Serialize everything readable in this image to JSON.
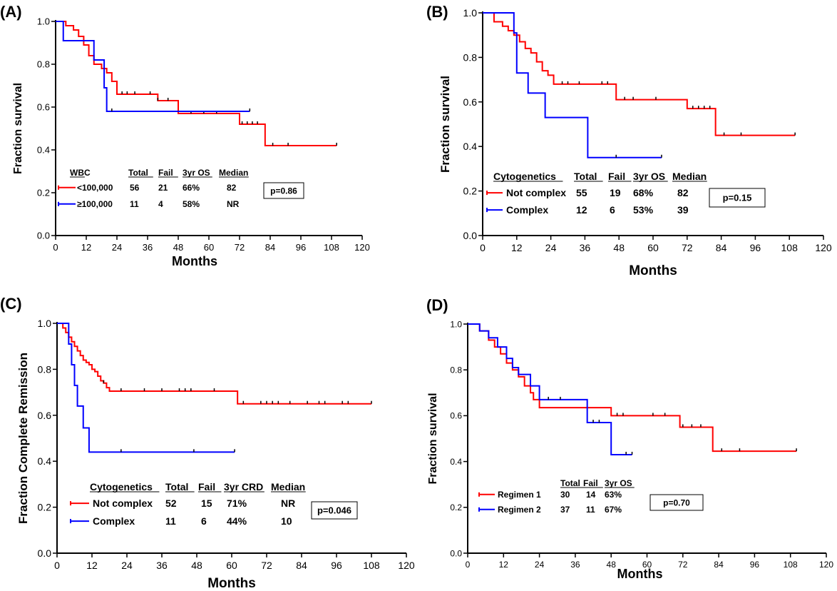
{
  "chart_data": [
    {
      "type": "line",
      "panel_label": "(A)",
      "ylabel": "Fraction survival",
      "xlabel": "Months",
      "xlim": [
        0,
        120
      ],
      "ylim": [
        0,
        1.0
      ],
      "xticks": [
        "0",
        "12",
        "24",
        "36",
        "48",
        "60",
        "72",
        "84",
        "96",
        "108",
        "120"
      ],
      "yticks": [
        "0.0",
        "0.2",
        "0.4",
        "0.6",
        "0.8",
        "1.0"
      ],
      "grid": false,
      "series": [
        {
          "name": "<100,000",
          "color": "#ff0000",
          "x": [
            0,
            4,
            7,
            9,
            11,
            13,
            15,
            18,
            20,
            22,
            24,
            28,
            40,
            48,
            72,
            82,
            110
          ],
          "y": [
            1.0,
            0.98,
            0.96,
            0.93,
            0.89,
            0.84,
            0.8,
            0.78,
            0.76,
            0.72,
            0.66,
            0.66,
            0.63,
            0.57,
            0.52,
            0.42,
            0.42
          ],
          "censor_x": [
            26,
            28,
            31,
            37,
            40,
            44,
            53,
            58,
            63,
            73,
            75,
            77,
            79,
            85,
            91,
            110
          ]
        },
        {
          "name": "≥100,000",
          "color": "#0000ff",
          "x": [
            0,
            3,
            15,
            19,
            20,
            76
          ],
          "y": [
            1.0,
            0.91,
            0.82,
            0.69,
            0.58,
            0.58
          ],
          "censor_x": [
            22,
            76
          ]
        }
      ],
      "legend": {
        "position": "bottom-left",
        "headers": [
          "WBC",
          "Total",
          "Fail",
          "3yr OS",
          "Median"
        ],
        "rows": [
          [
            "<100,000",
            "56",
            "21",
            "66%",
            "82"
          ],
          [
            "≥100,000",
            "11",
            "4",
            "58%",
            "NR"
          ]
        ]
      },
      "pvalue": "p=0.86"
    },
    {
      "type": "line",
      "panel_label": "(B)",
      "ylabel": "Fraction survival",
      "xlabel": "Months",
      "xlim": [
        0,
        120
      ],
      "ylim": [
        0,
        1.0
      ],
      "xticks": [
        "0",
        "12",
        "24",
        "36",
        "48",
        "60",
        "72",
        "84",
        "96",
        "108",
        "120"
      ],
      "yticks": [
        "0.0",
        "0.2",
        "0.4",
        "0.6",
        "0.8",
        "1.0"
      ],
      "grid": false,
      "series": [
        {
          "name": "Not complex",
          "color": "#ff0000",
          "x": [
            0,
            4,
            7,
            9,
            11,
            13,
            15,
            17,
            19,
            21,
            23,
            25,
            47,
            72,
            82,
            110
          ],
          "y": [
            1.0,
            0.96,
            0.94,
            0.92,
            0.9,
            0.87,
            0.84,
            0.82,
            0.78,
            0.74,
            0.72,
            0.68,
            0.61,
            0.57,
            0.45,
            0.45
          ],
          "censor_x": [
            28,
            30,
            34,
            42,
            44,
            50,
            53,
            61,
            74,
            76,
            78,
            80,
            85,
            91,
            110
          ]
        },
        {
          "name": "Complex",
          "color": "#0000ff",
          "x": [
            0,
            11,
            12,
            16,
            22,
            37,
            63
          ],
          "y": [
            1.0,
            0.91,
            0.73,
            0.64,
            0.53,
            0.35,
            0.35
          ],
          "censor_x": [
            47,
            63
          ]
        }
      ],
      "legend": {
        "position": "bottom-left",
        "headers": [
          "Cytogenetics",
          "Total",
          "Fail",
          "3yr OS",
          "Median"
        ],
        "rows": [
          [
            "Not complex",
            "55",
            "19",
            "68%",
            "82"
          ],
          [
            "Complex",
            "12",
            "6",
            "53%",
            "39"
          ]
        ]
      },
      "pvalue": "p=0.15"
    },
    {
      "type": "line",
      "panel_label": "(C)",
      "ylabel": "Fraction Complete Remission",
      "xlabel": "Months",
      "xlim": [
        0,
        120
      ],
      "ylim": [
        0,
        1.0
      ],
      "xticks": [
        "0",
        "12",
        "24",
        "36",
        "48",
        "60",
        "72",
        "84",
        "96",
        "108",
        "120"
      ],
      "yticks": [
        "0.0",
        "0.2",
        "0.4",
        "0.6",
        "0.8",
        "1.0"
      ],
      "grid": false,
      "series": [
        {
          "name": "Not complex",
          "color": "#ff0000",
          "x": [
            0,
            2,
            3,
            4,
            5,
            6,
            7,
            8,
            9,
            10,
            11,
            12,
            13,
            14,
            15,
            16,
            17,
            18,
            62,
            108
          ],
          "y": [
            1.0,
            0.98,
            0.96,
            0.94,
            0.92,
            0.9,
            0.88,
            0.86,
            0.84,
            0.83,
            0.82,
            0.8,
            0.79,
            0.77,
            0.75,
            0.74,
            0.72,
            0.705,
            0.65,
            0.65
          ],
          "censor_x": [
            16,
            22,
            30,
            36,
            42,
            44,
            46,
            54,
            64,
            70,
            72,
            74,
            76,
            80,
            86,
            90,
            92,
            98,
            100,
            108
          ]
        },
        {
          "name": "Complex",
          "color": "#0000ff",
          "x": [
            0,
            4,
            5,
            6,
            7,
            9,
            11,
            61
          ],
          "y": [
            1.0,
            0.91,
            0.82,
            0.73,
            0.64,
            0.545,
            0.44,
            0.44
          ],
          "censor_x": [
            22,
            47,
            61
          ]
        }
      ],
      "legend": {
        "position": "bottom-left",
        "headers": [
          "Cytogenetics",
          "Total",
          "Fail",
          "3yr CRD",
          "Median"
        ],
        "rows": [
          [
            "Not complex",
            "52",
            "15",
            "71%",
            "NR"
          ],
          [
            "Complex",
            "11",
            "6",
            "44%",
            "10"
          ]
        ]
      },
      "pvalue": "p=0.046"
    },
    {
      "type": "line",
      "panel_label": "(D)",
      "ylabel": "Fraction survival",
      "xlabel": "Months",
      "xlim": [
        0,
        120
      ],
      "ylim": [
        0,
        1.0
      ],
      "xticks": [
        "0",
        "12",
        "24",
        "36",
        "48",
        "60",
        "72",
        "84",
        "96",
        "108",
        "120"
      ],
      "yticks": [
        "0.0",
        "0.2",
        "0.4",
        "0.6",
        "0.8",
        "1.0"
      ],
      "grid": false,
      "series": [
        {
          "name": "Regimen 1",
          "color": "#ff0000",
          "x": [
            0,
            4,
            7,
            9,
            11,
            13,
            15,
            17,
            19,
            21,
            22,
            24,
            48,
            71,
            82,
            110
          ],
          "y": [
            1.0,
            0.97,
            0.93,
            0.9,
            0.87,
            0.83,
            0.8,
            0.77,
            0.73,
            0.7,
            0.67,
            0.635,
            0.6,
            0.55,
            0.445,
            0.445
          ],
          "censor_x": [
            50,
            52,
            62,
            66,
            72,
            75,
            78,
            85,
            91,
            110
          ]
        },
        {
          "name": "Regimen 2",
          "color": "#0000ff",
          "x": [
            0,
            4,
            7,
            10,
            13,
            15,
            17,
            21,
            24,
            40,
            48,
            55
          ],
          "y": [
            1.0,
            0.97,
            0.94,
            0.9,
            0.85,
            0.81,
            0.78,
            0.73,
            0.67,
            0.57,
            0.43,
            0.43
          ],
          "censor_x": [
            27,
            31,
            42,
            44,
            53,
            55
          ]
        }
      ],
      "legend": {
        "position": "bottom-left",
        "headers": [
          "",
          "Total",
          "Fail",
          "3yr OS"
        ],
        "rows": [
          [
            "Regimen 1",
            "30",
            "14",
            "63%"
          ],
          [
            "Regimen 2",
            "37",
            "11",
            "67%"
          ]
        ]
      },
      "pvalue": "p=0.70"
    }
  ]
}
